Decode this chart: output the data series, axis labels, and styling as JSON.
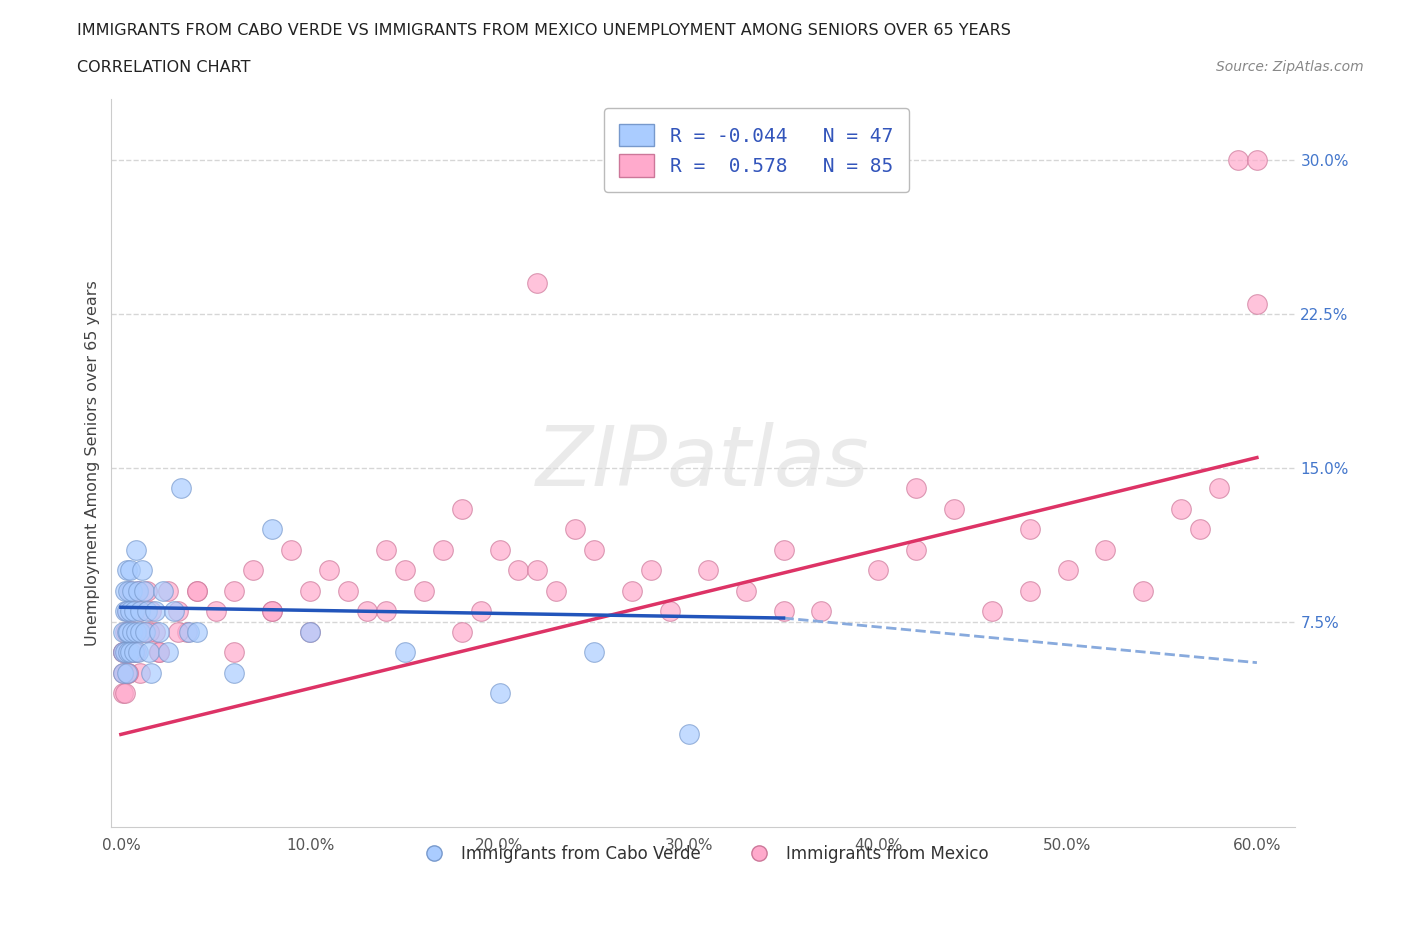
{
  "title_line1": "IMMIGRANTS FROM CABO VERDE VS IMMIGRANTS FROM MEXICO UNEMPLOYMENT AMONG SENIORS OVER 65 YEARS",
  "title_line2": "CORRELATION CHART",
  "source": "Source: ZipAtlas.com",
  "ylabel": "Unemployment Among Seniors over 65 years",
  "xlim": [
    -0.005,
    0.62
  ],
  "ylim": [
    -0.025,
    0.33
  ],
  "xticks": [
    0.0,
    0.1,
    0.2,
    0.3,
    0.4,
    0.5,
    0.6
  ],
  "xticklabels": [
    "0.0%",
    "10.0%",
    "20.0%",
    "30.0%",
    "40.0%",
    "50.0%",
    "60.0%"
  ],
  "yticks_right": [
    0.075,
    0.15,
    0.225,
    0.3
  ],
  "yticklabels_right": [
    "7.5%",
    "15.0%",
    "22.5%",
    "30.0%"
  ],
  "grid_color": "#cccccc",
  "cabo_verde_color": "#aaccff",
  "cabo_verde_edge": "#7799cc",
  "mexico_color": "#ffaacc",
  "mexico_edge": "#cc7799",
  "cabo_verde_R": -0.044,
  "cabo_verde_N": 47,
  "mexico_R": 0.578,
  "mexico_N": 85,
  "trend_cabo_solid_color": "#2255bb",
  "trend_cabo_dash_color": "#88aadd",
  "trend_mexico_color": "#dd3366",
  "legend_label1": "Immigrants from Cabo Verde",
  "legend_label2": "Immigrants from Mexico",
  "watermark": "ZIPatlas",
  "cabo_verde_x": [
    0.001,
    0.001,
    0.001,
    0.002,
    0.002,
    0.002,
    0.003,
    0.003,
    0.003,
    0.003,
    0.004,
    0.004,
    0.004,
    0.005,
    0.005,
    0.005,
    0.006,
    0.006,
    0.007,
    0.007,
    0.008,
    0.008,
    0.009,
    0.009,
    0.01,
    0.01,
    0.011,
    0.012,
    0.013,
    0.014,
    0.015,
    0.016,
    0.018,
    0.02,
    0.022,
    0.025,
    0.028,
    0.032,
    0.036,
    0.04,
    0.06,
    0.08,
    0.1,
    0.15,
    0.2,
    0.25,
    0.3
  ],
  "cabo_verde_y": [
    0.06,
    0.07,
    0.05,
    0.08,
    0.06,
    0.09,
    0.07,
    0.05,
    0.08,
    0.1,
    0.06,
    0.09,
    0.07,
    0.08,
    0.06,
    0.1,
    0.07,
    0.09,
    0.08,
    0.06,
    0.11,
    0.07,
    0.09,
    0.06,
    0.08,
    0.07,
    0.1,
    0.09,
    0.07,
    0.08,
    0.06,
    0.05,
    0.08,
    0.07,
    0.09,
    0.06,
    0.08,
    0.14,
    0.07,
    0.07,
    0.05,
    0.12,
    0.07,
    0.06,
    0.04,
    0.06,
    0.02
  ],
  "mexico_x": [
    0.001,
    0.001,
    0.002,
    0.002,
    0.003,
    0.003,
    0.004,
    0.004,
    0.005,
    0.005,
    0.006,
    0.007,
    0.008,
    0.009,
    0.01,
    0.012,
    0.014,
    0.016,
    0.018,
    0.02,
    0.025,
    0.03,
    0.035,
    0.04,
    0.05,
    0.06,
    0.07,
    0.08,
    0.09,
    0.1,
    0.11,
    0.12,
    0.13,
    0.14,
    0.15,
    0.16,
    0.17,
    0.18,
    0.19,
    0.2,
    0.21,
    0.22,
    0.23,
    0.24,
    0.25,
    0.27,
    0.29,
    0.31,
    0.33,
    0.35,
    0.37,
    0.4,
    0.42,
    0.44,
    0.46,
    0.48,
    0.5,
    0.52,
    0.54,
    0.56,
    0.57,
    0.58,
    0.59,
    0.6,
    0.6,
    0.48,
    0.42,
    0.35,
    0.28,
    0.22,
    0.18,
    0.14,
    0.1,
    0.08,
    0.06,
    0.04,
    0.03,
    0.02,
    0.015,
    0.01,
    0.007,
    0.004,
    0.002,
    0.001,
    0.001
  ],
  "mexico_y": [
    0.06,
    0.04,
    0.07,
    0.05,
    0.06,
    0.08,
    0.07,
    0.05,
    0.09,
    0.06,
    0.08,
    0.07,
    0.06,
    0.09,
    0.08,
    0.07,
    0.09,
    0.08,
    0.07,
    0.06,
    0.09,
    0.08,
    0.07,
    0.09,
    0.08,
    0.09,
    0.1,
    0.08,
    0.11,
    0.09,
    0.1,
    0.09,
    0.08,
    0.11,
    0.1,
    0.09,
    0.11,
    0.13,
    0.08,
    0.11,
    0.1,
    0.1,
    0.09,
    0.12,
    0.11,
    0.09,
    0.08,
    0.1,
    0.09,
    0.11,
    0.08,
    0.1,
    0.11,
    0.13,
    0.08,
    0.12,
    0.1,
    0.11,
    0.09,
    0.13,
    0.12,
    0.14,
    0.3,
    0.3,
    0.23,
    0.09,
    0.14,
    0.08,
    0.1,
    0.24,
    0.07,
    0.08,
    0.07,
    0.08,
    0.06,
    0.09,
    0.07,
    0.06,
    0.07,
    0.05,
    0.06,
    0.05,
    0.04,
    0.05,
    0.06
  ],
  "cv_trend_x0": 0.0,
  "cv_trend_x1": 0.6,
  "cv_trend_y0_solid": 0.082,
  "cv_trend_y1_solid": 0.073,
  "cv_trend_y0_dash": 0.073,
  "cv_trend_y1_dash": 0.055,
  "mx_trend_y0": 0.02,
  "mx_trend_y1": 0.155
}
